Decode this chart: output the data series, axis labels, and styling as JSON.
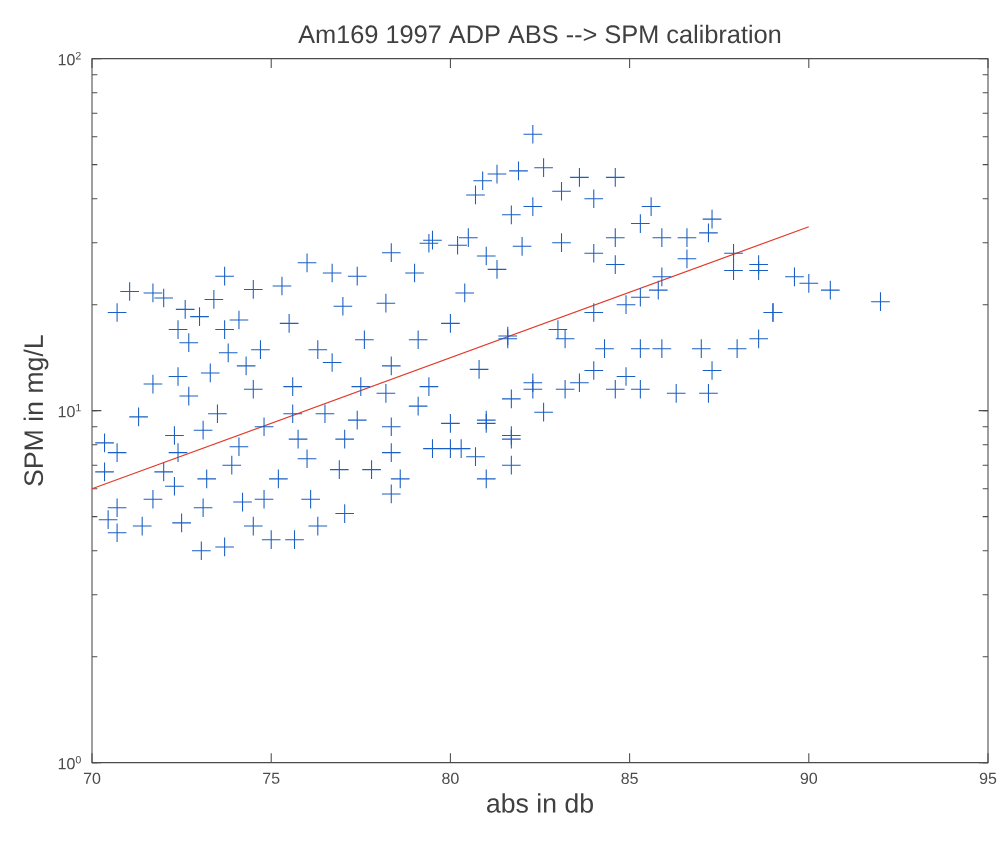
{
  "chart_data": {
    "type": "scatter",
    "title": "Am169 1997 ADP ABS --> SPM calibration",
    "xlabel": "abs in db",
    "ylabel": "SPM in mg/L",
    "xlim": [
      70,
      95
    ],
    "ylim": [
      1,
      100
    ],
    "log": "y",
    "xticks": [
      70,
      75,
      80,
      85,
      90,
      95
    ],
    "yticks": [
      {
        "value": 1,
        "label": "10$^{0}$"
      },
      {
        "value": 10,
        "label": "10$^{1}$"
      },
      {
        "value": 100,
        "label": "10$^{2}$"
      }
    ],
    "series": [
      {
        "marker": "cross",
        "color": "#1a5fc4",
        "x": [
          71.05,
          70.7,
          71.7,
          72.0,
          72.6,
          73.0,
          73.4,
          73.7,
          72.4,
          72.7,
          73.7,
          73.8,
          71.7,
          72.4,
          73.3,
          72.7,
          71.3,
          70.35,
          70.7,
          70.35,
          70.7,
          70.45,
          70.7,
          71.4,
          71.7,
          72.0,
          72.3,
          72.4,
          72.3,
          72.5,
          73.05,
          73.7,
          73.1,
          73.2,
          73.1,
          73.5,
          74.1,
          73.9,
          74.2,
          74.5,
          75.0,
          75.65,
          74.8,
          75.2,
          74.8,
          74.5,
          74.3,
          74.7,
          74.1,
          74.5,
          75.3,
          75.5,
          76.0,
          76.3,
          75.6,
          75.6,
          75.75,
          76.0,
          76.1,
          76.3,
          76.7,
          77.0,
          76.7,
          76.5,
          77.05,
          76.9,
          77.05,
          77.4,
          77.6,
          77.5,
          77.4,
          77.8,
          78.35,
          78.35,
          78.2,
          78.35,
          78.2,
          78.35,
          78.35,
          78.6,
          79.0,
          79.1,
          79.4,
          79.4,
          79.1,
          79.5,
          80.0,
          80.0,
          80.3,
          80.7,
          80.4,
          80.0,
          81.0,
          81.0,
          81.7,
          81.7,
          80.8,
          81.6,
          82.0,
          81.3,
          82.3,
          79.5,
          80.2,
          80.5,
          81.0,
          82.3,
          82.6,
          81.9,
          81.3,
          80.9,
          80.7,
          81.7,
          82.3,
          83.1,
          83.6,
          84.0,
          84.6,
          85.6,
          85.3,
          87.3,
          87.2,
          85.9,
          86.6,
          84.6,
          83.1,
          84.0,
          84.6,
          86.6,
          85.9,
          87.9,
          87.9,
          88.6,
          88.6,
          89.6,
          90.0,
          90.6,
          89.0,
          89.0,
          85.8,
          85.3,
          84.9,
          84.0,
          83.0,
          81.6,
          83.2,
          84.3,
          85.3,
          85.9,
          87.0,
          88.0,
          88.6,
          87.3,
          84.0,
          83.6,
          84.9,
          83.2,
          84.6,
          85.3,
          86.3,
          87.2,
          82.3,
          81.7,
          82.6,
          81.0,
          81.7,
          92.0
        ],
        "values": [
          21.8,
          19.0,
          21.6,
          20.9,
          19.4,
          18.5,
          20.7,
          24.1,
          17.0,
          15.6,
          17.0,
          14.6,
          11.9,
          12.5,
          12.8,
          11.0,
          9.6,
          8.1,
          7.6,
          6.7,
          5.3,
          4.9,
          4.5,
          4.7,
          5.6,
          6.7,
          8.5,
          7.6,
          6.1,
          4.8,
          4.0,
          4.1,
          5.3,
          6.4,
          8.8,
          9.8,
          7.9,
          7.0,
          5.5,
          4.7,
          4.3,
          4.3,
          5.6,
          6.4,
          9.0,
          11.5,
          13.4,
          14.9,
          18.1,
          22.1,
          22.6,
          17.7,
          26.3,
          14.9,
          11.7,
          9.8,
          8.3,
          7.3,
          5.6,
          4.7,
          24.6,
          19.8,
          13.7,
          9.8,
          8.3,
          6.8,
          5.1,
          24.1,
          15.9,
          11.7,
          9.4,
          6.8,
          5.8,
          28.1,
          20.2,
          13.4,
          11.2,
          9.0,
          7.6,
          6.4,
          24.6,
          15.9,
          29.9,
          11.7,
          10.3,
          7.8,
          17.7,
          7.8,
          7.8,
          7.4,
          21.6,
          9.2,
          9.4,
          6.4,
          8.3,
          7.0,
          13.1,
          16.3,
          29.3,
          25.2,
          12.0,
          30.5,
          29.5,
          31.0,
          27.5,
          61,
          49,
          48,
          47,
          45,
          41,
          36,
          38,
          42,
          46,
          40,
          46,
          38,
          34,
          35,
          32,
          31,
          31,
          31,
          30,
          28,
          26,
          27,
          24,
          28,
          25,
          26,
          25,
          24,
          23,
          22,
          19,
          19,
          22,
          21,
          20,
          19,
          17,
          16,
          16,
          15,
          15,
          15,
          15,
          15,
          16,
          13,
          13,
          12,
          12.5,
          11.5,
          11.5,
          11.5,
          11.2,
          11.2,
          11.5,
          10.8,
          9.9,
          9.2,
          8.5,
          20.4
        ]
      },
      {
        "type": "line",
        "color": "#e03a2a",
        "x": [
          70,
          90
        ],
        "values": [
          6.0,
          33.3
        ]
      }
    ]
  }
}
